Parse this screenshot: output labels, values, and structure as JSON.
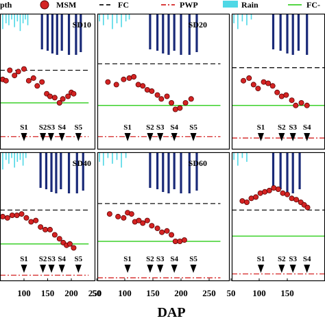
{
  "legend": {
    "items": [
      {
        "label": "pth",
        "kind": "text-only"
      },
      {
        "label": "MSM",
        "kind": "marker",
        "color": "#d42323"
      },
      {
        "label": "FC",
        "kind": "dash",
        "color": "#111111"
      },
      {
        "label": "PWP",
        "kind": "dashdot",
        "color": "#d42323"
      },
      {
        "label": "Rain",
        "kind": "rect",
        "color": "#4fd8e6"
      },
      {
        "label": "FC-",
        "kind": "line",
        "color": "#3bd12a"
      }
    ]
  },
  "chart_data": {
    "type": "line",
    "xlabel": "DAP",
    "xlim": [
      30,
      250
    ],
    "x_ticks": {
      "top-left": [],
      "top-middle": [],
      "top-right": [],
      "bottom-left": [
        100,
        150,
        200,
        250
      ],
      "bottom-middle": [
        50,
        100,
        150,
        200,
        250
      ],
      "bottom-right": [
        50,
        100,
        150
      ]
    },
    "colors": {
      "msm": "#d42323",
      "fc": "#111111",
      "pwp": "#d42323",
      "rain": "#4fd8e6",
      "irrigation": "#1a2a78",
      "fc_line": "#3bd12a"
    },
    "panels": [
      {
        "id": "top-left",
        "title": "SD10",
        "x_offset": 0,
        "fc": 4.5,
        "green": 2.0,
        "pwp": -0.6,
        "msm": [
          [
            40,
            4.2
          ],
          [
            55,
            3.8
          ],
          [
            62,
            3.7
          ],
          [
            70,
            4.5
          ],
          [
            80,
            4.1
          ],
          [
            88,
            4.4
          ],
          [
            100,
            4.6
          ],
          [
            110,
            3.7
          ],
          [
            120,
            3.9
          ],
          [
            128,
            3.3
          ],
          [
            138,
            3.6
          ],
          [
            148,
            2.7
          ],
          [
            155,
            2.5
          ],
          [
            165,
            2.4
          ],
          [
            175,
            2.0
          ],
          [
            182,
            2.3
          ],
          [
            193,
            2.5
          ],
          [
            200,
            2.8
          ],
          [
            205,
            2.7
          ]
        ],
        "rain": [
          [
            55,
            0.8
          ],
          [
            62,
            0.5
          ],
          [
            68,
            0.6
          ],
          [
            74,
            0.3
          ],
          [
            80,
            0.7
          ],
          [
            86,
            0.4
          ],
          [
            92,
            0.9
          ],
          [
            98,
            0.5
          ],
          [
            103,
            0.3
          ],
          [
            108,
            0.6
          ]
        ],
        "irrigation": [
          [
            138,
            2.6
          ],
          [
            150,
            2.7
          ],
          [
            160,
            2.9
          ],
          [
            170,
            3.0
          ],
          [
            180,
            2.7
          ],
          [
            195,
            3.0
          ],
          [
            210,
            3.0
          ],
          [
            220,
            2.8
          ]
        ],
        "stages": [
          [
            "S1",
            100
          ],
          [
            "S2",
            140
          ],
          [
            "S3",
            157
          ],
          [
            "S4",
            180
          ],
          [
            "S5",
            215
          ]
        ]
      },
      {
        "id": "top-middle",
        "title": "SD20",
        "x_offset": 0,
        "fc": 5.0,
        "green": 1.8,
        "pwp": -0.6,
        "msm": [
          [
            70,
            3.6
          ],
          [
            85,
            3.4
          ],
          [
            98,
            3.8
          ],
          [
            108,
            3.9
          ],
          [
            116,
            4.0
          ],
          [
            124,
            3.4
          ],
          [
            132,
            3.3
          ],
          [
            140,
            3.0
          ],
          [
            148,
            2.9
          ],
          [
            158,
            2.6
          ],
          [
            165,
            2.3
          ],
          [
            175,
            2.5
          ],
          [
            183,
            2.0
          ],
          [
            190,
            1.5
          ],
          [
            198,
            1.6
          ],
          [
            208,
            2.0
          ],
          [
            218,
            2.3
          ]
        ],
        "rain": [
          [
            55,
            0.4
          ],
          [
            62,
            0.6
          ],
          [
            70,
            0.3
          ],
          [
            78,
            0.8
          ],
          [
            86,
            0.5
          ],
          [
            94,
            0.7
          ],
          [
            102,
            0.4
          ],
          [
            108,
            0.3
          ]
        ],
        "irrigation": [
          [
            145,
            2.6
          ],
          [
            158,
            2.7
          ],
          [
            168,
            2.9
          ],
          [
            178,
            3.0
          ],
          [
            188,
            2.7
          ],
          [
            200,
            3.0
          ],
          [
            215,
            3.0
          ],
          [
            228,
            2.8
          ]
        ],
        "stages": [
          [
            "S1",
            105
          ],
          [
            "S2",
            145
          ],
          [
            "S3",
            163
          ],
          [
            "S4",
            188
          ],
          [
            "S5",
            222
          ]
        ]
      },
      {
        "id": "top-right",
        "title": "",
        "x_offset": 0,
        "fc": 4.7,
        "green": 1.8,
        "pwp": -0.7,
        "msm": [
          [
            72,
            3.7
          ],
          [
            82,
            3.9
          ],
          [
            90,
            3.4
          ],
          [
            98,
            3.1
          ],
          [
            108,
            3.6
          ],
          [
            116,
            3.5
          ],
          [
            124,
            3.3
          ],
          [
            132,
            2.8
          ],
          [
            140,
            2.5
          ],
          [
            148,
            2.6
          ],
          [
            158,
            2.2
          ],
          [
            165,
            1.8
          ],
          [
            175,
            2.0
          ],
          [
            185,
            1.8
          ]
        ],
        "rain": [
          [
            55,
            0.5
          ],
          [
            62,
            0.8
          ],
          [
            70,
            0.4
          ],
          [
            78,
            0.6
          ],
          [
            86,
            0.3
          ]
        ],
        "irrigation": [
          [
            125,
            2.6
          ],
          [
            138,
            2.7
          ],
          [
            150,
            2.9
          ],
          [
            160,
            3.0
          ],
          [
            170,
            2.7
          ],
          [
            185,
            3.0
          ]
        ],
        "stages": [
          [
            "S1",
            103
          ],
          [
            "S2",
            140
          ],
          [
            "S3",
            160
          ],
          [
            "S4",
            185
          ]
        ]
      },
      {
        "id": "bottom-left",
        "title": "SD40",
        "x_offset": 0,
        "fc": 4.4,
        "green": 1.8,
        "pwp": -0.6,
        "msm": [
          [
            40,
            4.0
          ],
          [
            55,
            3.9
          ],
          [
            65,
            3.8
          ],
          [
            75,
            4.0
          ],
          [
            85,
            4.0
          ],
          [
            95,
            4.1
          ],
          [
            105,
            3.8
          ],
          [
            115,
            3.5
          ],
          [
            125,
            3.6
          ],
          [
            135,
            3.1
          ],
          [
            145,
            2.9
          ],
          [
            155,
            2.9
          ],
          [
            165,
            2.5
          ],
          [
            175,
            2.2
          ],
          [
            183,
            1.9
          ],
          [
            190,
            1.7
          ],
          [
            197,
            1.8
          ],
          [
            205,
            1.5
          ]
        ],
        "rain": [
          [
            55,
            0.9
          ],
          [
            62,
            0.4
          ],
          [
            68,
            0.6
          ],
          [
            74,
            0.3
          ],
          [
            80,
            0.8
          ],
          [
            86,
            0.5
          ],
          [
            92,
            0.4
          ],
          [
            98,
            0.7
          ],
          [
            104,
            0.3
          ]
        ],
        "irrigation": [
          [
            135,
            2.6
          ],
          [
            147,
            2.7
          ],
          [
            158,
            2.9
          ],
          [
            168,
            3.0
          ],
          [
            178,
            2.7
          ],
          [
            195,
            3.0
          ],
          [
            212,
            3.0
          ],
          [
            225,
            2.8
          ]
        ],
        "stages": [
          [
            "S1",
            100
          ],
          [
            "S2",
            140
          ],
          [
            "S3",
            158
          ],
          [
            "S4",
            180
          ],
          [
            "S5",
            215
          ]
        ]
      },
      {
        "id": "bottom-middle",
        "title": "SD60",
        "x_offset": 0,
        "fc": 4.9,
        "green": 2.0,
        "pwp": -0.8,
        "msm": [
          [
            73,
            4.1
          ],
          [
            88,
            3.9
          ],
          [
            98,
            3.8
          ],
          [
            105,
            4.2
          ],
          [
            112,
            4.1
          ],
          [
            118,
            3.5
          ],
          [
            125,
            3.6
          ],
          [
            132,
            3.4
          ],
          [
            140,
            3.6
          ],
          [
            148,
            3.2
          ],
          [
            158,
            3.0
          ],
          [
            166,
            2.7
          ],
          [
            175,
            2.8
          ],
          [
            183,
            2.5
          ],
          [
            190,
            2.0
          ],
          [
            198,
            2.0
          ],
          [
            206,
            2.1
          ]
        ],
        "rain": [
          [
            55,
            0.5
          ],
          [
            62,
            0.7
          ],
          [
            70,
            0.3
          ],
          [
            78,
            0.6
          ],
          [
            86,
            0.4
          ],
          [
            94,
            0.8
          ],
          [
            102,
            0.3
          ]
        ],
        "irrigation": [
          [
            145,
            2.6
          ],
          [
            158,
            2.7
          ],
          [
            168,
            2.9
          ],
          [
            178,
            3.0
          ],
          [
            188,
            2.7
          ],
          [
            200,
            3.0
          ],
          [
            215,
            3.0
          ],
          [
            228,
            2.8
          ]
        ],
        "stages": [
          [
            "S1",
            105
          ],
          [
            "S2",
            145
          ],
          [
            "S3",
            163
          ],
          [
            "S4",
            188
          ],
          [
            "S5",
            222
          ]
        ]
      },
      {
        "id": "bottom-right",
        "title": "",
        "x_offset": 0,
        "fc": 4.4,
        "green": 2.4,
        "pwp": -0.5,
        "msm": [
          [
            70,
            5.1
          ],
          [
            78,
            5.0
          ],
          [
            86,
            5.3
          ],
          [
            94,
            5.4
          ],
          [
            102,
            5.7
          ],
          [
            110,
            5.8
          ],
          [
            118,
            5.9
          ],
          [
            126,
            6.1
          ],
          [
            134,
            6.0
          ],
          [
            142,
            5.7
          ],
          [
            150,
            5.6
          ],
          [
            158,
            5.3
          ],
          [
            166,
            5.2
          ],
          [
            174,
            5.0
          ],
          [
            180,
            4.8
          ],
          [
            186,
            4.6
          ]
        ],
        "rain": [
          [
            55,
            0.4
          ],
          [
            62,
            0.7
          ],
          [
            70,
            0.3
          ],
          [
            78,
            0.5
          ]
        ],
        "irrigation": [
          [
            125,
            2.6
          ],
          [
            138,
            2.7
          ],
          [
            150,
            2.9
          ],
          [
            160,
            3.0
          ],
          [
            172,
            2.7
          ]
        ],
        "stages": [
          [
            "S1",
            103
          ],
          [
            "S2",
            140
          ],
          [
            "S3",
            160
          ],
          [
            "S4",
            185
          ]
        ]
      }
    ]
  }
}
